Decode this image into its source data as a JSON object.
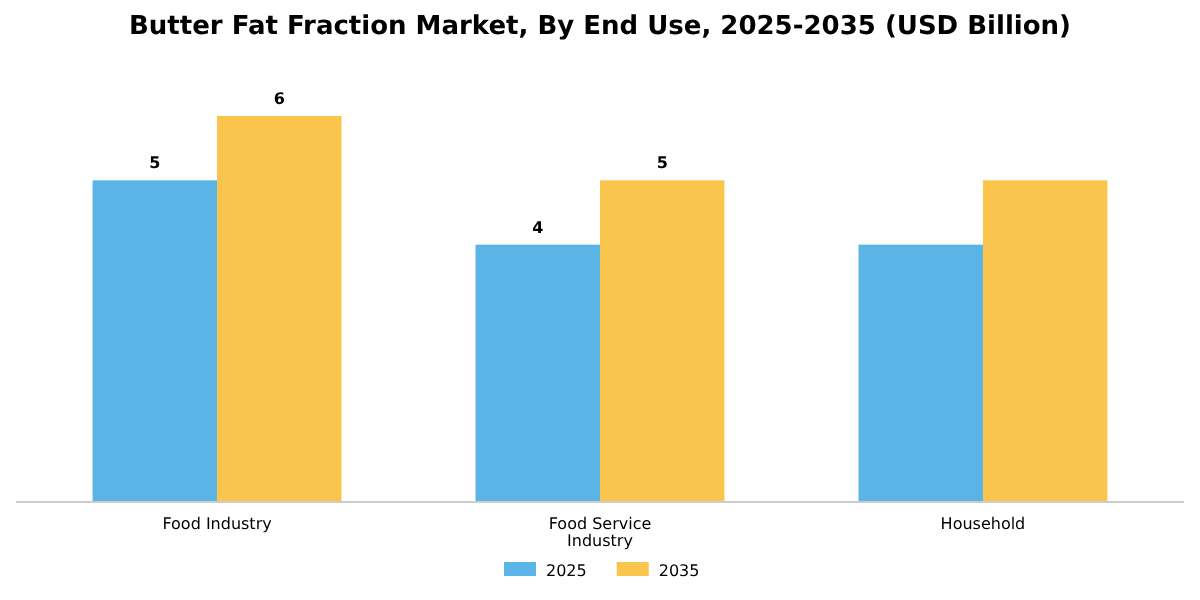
{
  "chart_data": {
    "type": "bar",
    "title": "Butter Fat Fraction Market, By End Use, 2025-2035 (USD Billion)",
    "categories": [
      "Food Industry",
      "Food Service Industry",
      "Household"
    ],
    "ylim": [
      0,
      6
    ],
    "legend": "bottom",
    "series": [
      {
        "name": "2025",
        "color": "#5ab4e6",
        "values": [
          5,
          4,
          4
        ],
        "value_labels": [
          "5",
          "4",
          null
        ]
      },
      {
        "name": "2035",
        "color": "#f9c54c",
        "values": [
          6,
          5,
          5
        ],
        "value_labels": [
          "6",
          "5",
          null
        ]
      }
    ]
  }
}
